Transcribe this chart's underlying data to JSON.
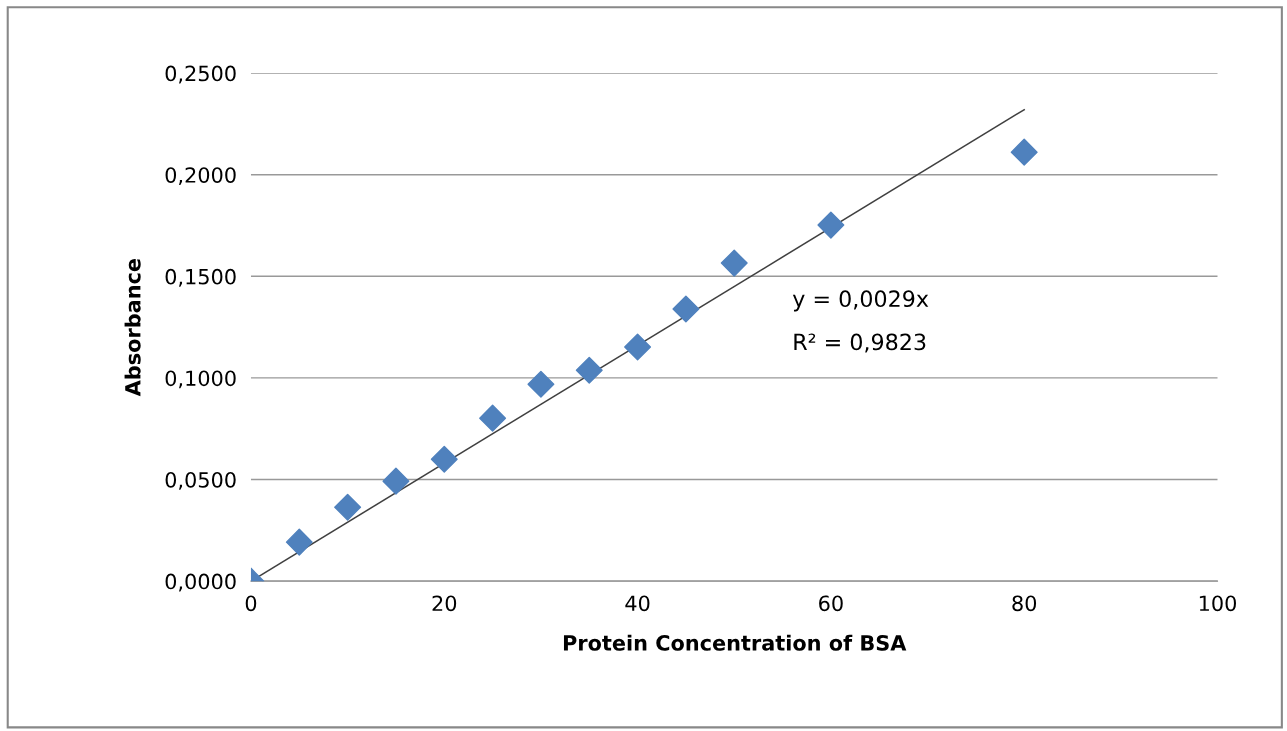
{
  "chart_data": {
    "type": "scatter",
    "xlabel": "Protein Concentration of BSA",
    "ylabel": "Absorbance",
    "series": [
      {
        "color": "#4f81bd",
        "marker": "diamond",
        "x": [
          0,
          5,
          10,
          15,
          20,
          25,
          30,
          35,
          40,
          45,
          50,
          60,
          80
        ],
        "values": [
          0,
          0.0192,
          0.0364,
          0.0492,
          0.06,
          0.0802,
          0.0969,
          0.1038,
          0.1152,
          0.1339,
          0.1565,
          0.1752,
          0.2111
        ]
      },
      {
        "type": "line",
        "color": "#404040",
        "marker": "none",
        "line_style": "solid",
        "x": [
          0,
          80
        ],
        "values": [
          0,
          0.232
        ]
      }
    ],
    "xlim": [
      0,
      100
    ],
    "xticks": [
      0,
      20,
      40,
      60,
      80,
      100
    ],
    "ylim": [
      0,
      0.25
    ],
    "yticks": [
      {
        "value": 0,
        "label": "0,0000"
      },
      {
        "value": 0.05,
        "label": "0,0500"
      },
      {
        "value": 0.1,
        "label": "0,1000"
      },
      {
        "value": 0.15,
        "label": "0,1500"
      },
      {
        "value": 0.2,
        "label": "0,2000"
      },
      {
        "value": 0.25,
        "label": "0,2500"
      }
    ],
    "grid": "y",
    "annotations": [
      "y = 0,0029x",
      "R² = 0,9823"
    ]
  }
}
